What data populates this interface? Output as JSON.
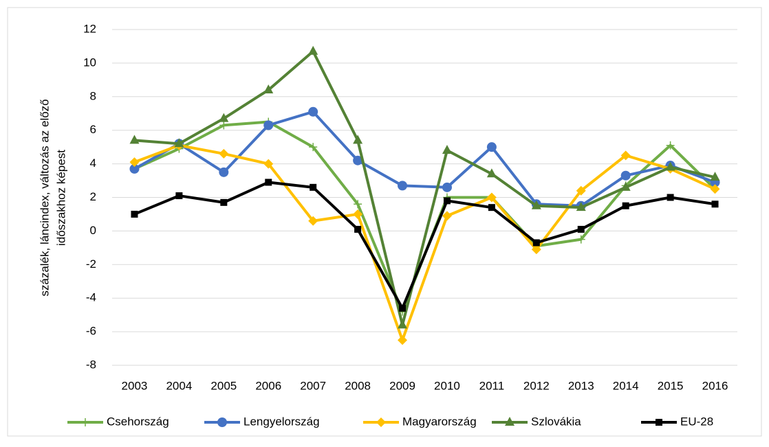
{
  "chart_data": {
    "type": "line",
    "y_label": [
      "százalék, láncindex, változás az előző",
      "időszakhoz képest"
    ],
    "categories": [
      "2003",
      "2004",
      "2005",
      "2006",
      "2007",
      "2008",
      "2009",
      "2010",
      "2011",
      "2012",
      "2013",
      "2014",
      "2015",
      "2016"
    ],
    "series": [
      {
        "name": "Csehország",
        "color": "#70ad47",
        "marker": "plus",
        "values": [
          3.7,
          4.9,
          6.3,
          6.5,
          5.0,
          1.6,
          -4.8,
          2.0,
          2.0,
          -0.9,
          -0.5,
          2.7,
          5.1,
          2.5
        ]
      },
      {
        "name": "Lengyelország",
        "color": "#4472c4",
        "marker": "circle",
        "values": [
          3.7,
          5.2,
          3.5,
          6.3,
          7.1,
          4.2,
          2.7,
          2.6,
          5.0,
          1.6,
          1.5,
          3.3,
          3.9,
          2.9
        ]
      },
      {
        "name": "Magyarország",
        "color": "#ffc000",
        "marker": "diamond",
        "values": [
          4.1,
          5.1,
          4.6,
          4.0,
          0.6,
          1.0,
          -6.5,
          0.9,
          2.0,
          -1.1,
          2.4,
          4.5,
          3.7,
          2.5
        ]
      },
      {
        "name": "Szlovákia",
        "color": "#548235",
        "marker": "triangle",
        "values": [
          5.4,
          5.2,
          6.7,
          8.4,
          10.7,
          5.4,
          -5.6,
          4.8,
          3.4,
          1.5,
          1.4,
          2.6,
          3.8,
          3.2
        ]
      },
      {
        "name": "EU-28",
        "color": "#000000",
        "marker": "square",
        "values": [
          1.0,
          2.1,
          1.7,
          2.9,
          2.6,
          0.1,
          -4.6,
          1.8,
          1.4,
          -0.7,
          0.1,
          1.5,
          2.0,
          1.6
        ]
      }
    ],
    "ylim": [
      -8,
      12
    ],
    "yticks": [
      -8,
      -6,
      -4,
      -2,
      0,
      2,
      4,
      6,
      8,
      10,
      12
    ],
    "grid": true,
    "legend": "bottom"
  }
}
